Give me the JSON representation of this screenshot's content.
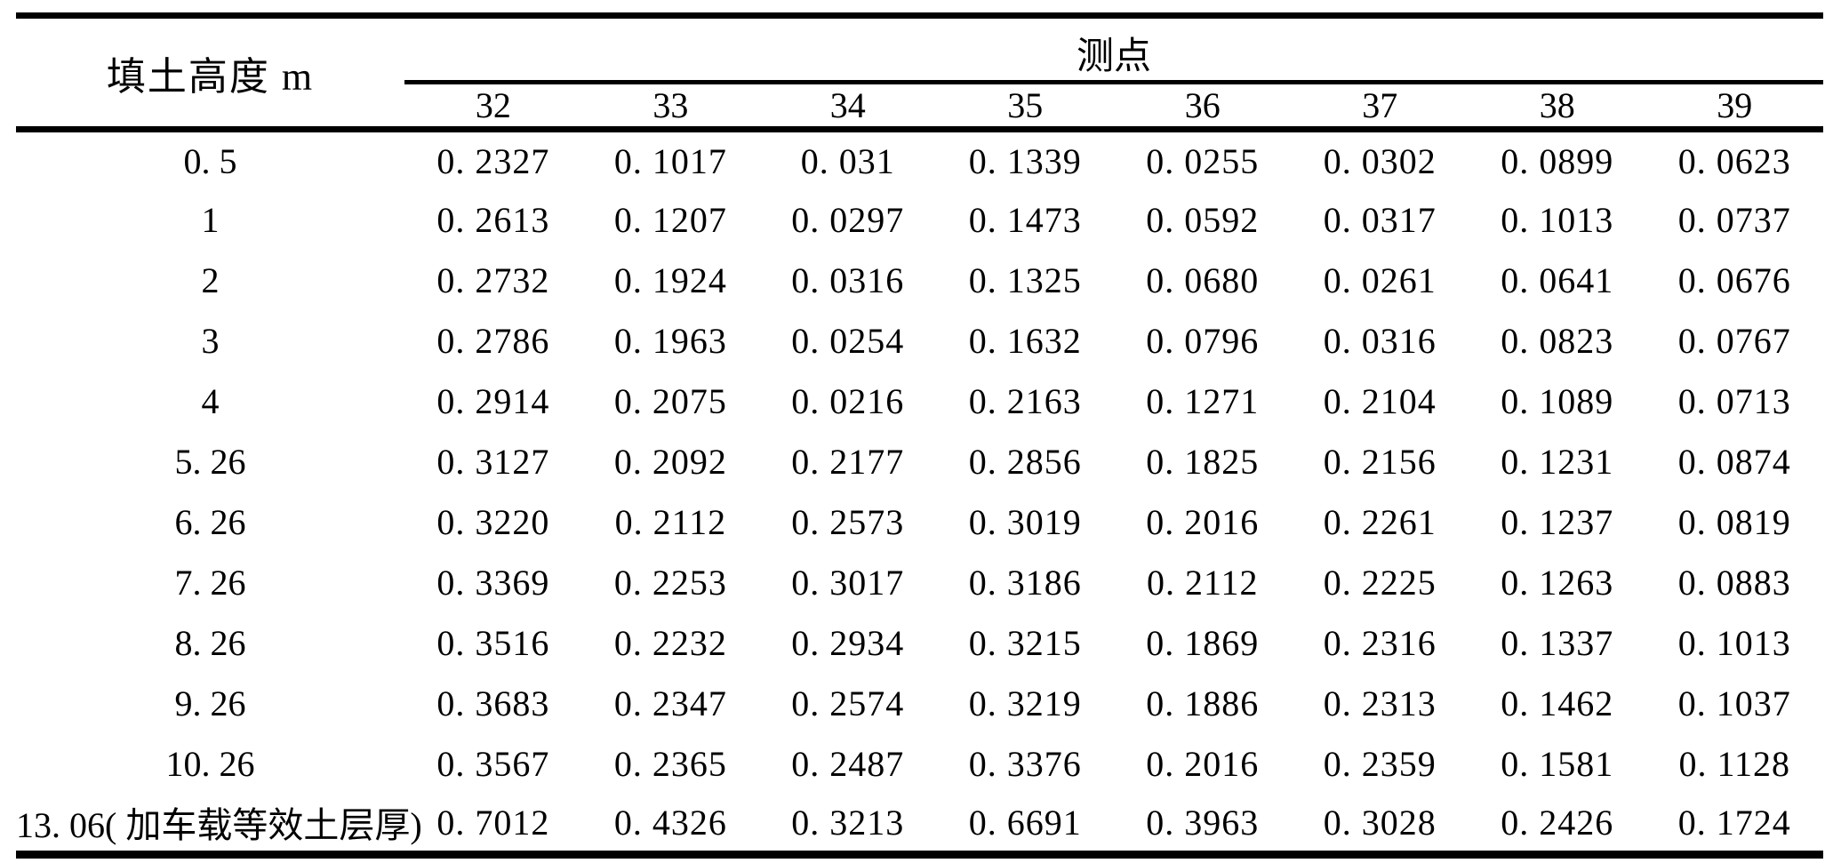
{
  "table": {
    "row_header_title": "填土高度 m",
    "col_group_title": "测点",
    "col_headers": [
      "32",
      "33",
      "34",
      "35",
      "36",
      "37",
      "38",
      "39"
    ],
    "rows": [
      {
        "label": "0. 5",
        "values": [
          "0. 2327",
          "0. 1017",
          "0. 031",
          "0. 1339",
          "0. 0255",
          "0. 0302",
          "0. 0899",
          "0. 0623"
        ]
      },
      {
        "label": "1",
        "values": [
          "0. 2613",
          "0. 1207",
          "0. 0297",
          "0. 1473",
          "0. 0592",
          "0. 0317",
          "0. 1013",
          "0. 0737"
        ]
      },
      {
        "label": "2",
        "values": [
          "0. 2732",
          "0. 1924",
          "0. 0316",
          "0. 1325",
          "0. 0680",
          "0. 0261",
          "0. 0641",
          "0. 0676"
        ]
      },
      {
        "label": "3",
        "values": [
          "0. 2786",
          "0. 1963",
          "0. 0254",
          "0. 1632",
          "0. 0796",
          "0. 0316",
          "0. 0823",
          "0. 0767"
        ]
      },
      {
        "label": "4",
        "values": [
          "0. 2914",
          "0. 2075",
          "0. 0216",
          "0. 2163",
          "0. 1271",
          "0. 2104",
          "0. 1089",
          "0. 0713"
        ]
      },
      {
        "label": "5. 26",
        "values": [
          "0. 3127",
          "0. 2092",
          "0. 2177",
          "0. 2856",
          "0. 1825",
          "0. 2156",
          "0. 1231",
          "0. 0874"
        ]
      },
      {
        "label": "6. 26",
        "values": [
          "0. 3220",
          "0. 2112",
          "0. 2573",
          "0. 3019",
          "0. 2016",
          "0. 2261",
          "0. 1237",
          "0. 0819"
        ]
      },
      {
        "label": "7. 26",
        "values": [
          "0. 3369",
          "0. 2253",
          "0. 3017",
          "0. 3186",
          "0. 2112",
          "0. 2225",
          "0. 1263",
          "0. 0883"
        ]
      },
      {
        "label": "8. 26",
        "values": [
          "0. 3516",
          "0. 2232",
          "0. 2934",
          "0. 3215",
          "0. 1869",
          "0. 2316",
          "0. 1337",
          "0. 1013"
        ]
      },
      {
        "label": "9. 26",
        "values": [
          "0. 3683",
          "0. 2347",
          "0. 2574",
          "0. 3219",
          "0. 1886",
          "0. 2313",
          "0. 1462",
          "0. 1037"
        ]
      },
      {
        "label": "10. 26",
        "values": [
          "0. 3567",
          "0. 2365",
          "0. 2487",
          "0. 3376",
          "0. 2016",
          "0. 2359",
          "0. 1581",
          "0. 1128"
        ]
      },
      {
        "label": "13. 06( 加车载等效土层厚)",
        "values": [
          "0. 7012",
          "0. 4326",
          "0. 3213",
          "0. 6691",
          "0. 3963",
          "0. 3028",
          "0. 2426",
          "0. 1724"
        ]
      }
    ],
    "colors": {
      "text": "#000000",
      "background": "#ffffff",
      "rule": "#000000"
    }
  }
}
